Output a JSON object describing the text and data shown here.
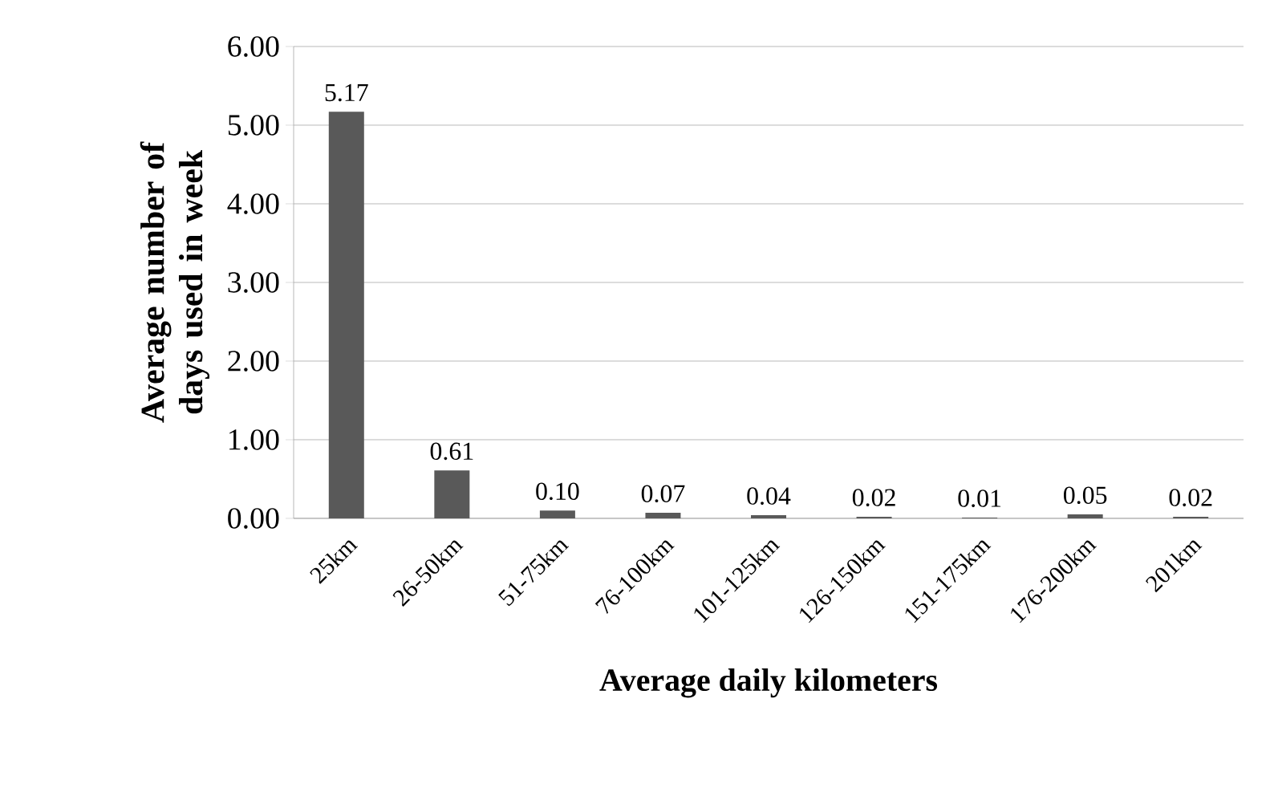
{
  "chart_data": {
    "type": "bar",
    "xlabel": "Average daily kilometers",
    "ylabel": "Average number of days used in week",
    "categories": [
      "25km",
      "26-50km",
      "51-75km",
      "76-100km",
      "101-125km",
      "126-150km",
      "151-175km",
      "176-200km",
      "201km"
    ],
    "values": [
      5.17,
      0.61,
      0.1,
      0.07,
      0.04,
      0.02,
      0.01,
      0.05,
      0.02
    ],
    "value_labels": [
      "5.17",
      "0.61",
      "0.10",
      "0.07",
      "0.04",
      "0.02",
      "0.01",
      "0.05",
      "0.02"
    ],
    "color": "#595959",
    "ylim": [
      0,
      6
    ],
    "yticks": [
      {
        "value": 0,
        "label": "0.00"
      },
      {
        "value": 1,
        "label": "1.00"
      },
      {
        "value": 2,
        "label": "2.00"
      },
      {
        "value": 3,
        "label": "3.00"
      },
      {
        "value": 4,
        "label": "4.00"
      },
      {
        "value": 5,
        "label": "5.00"
      },
      {
        "value": 6,
        "label": "6.00"
      }
    ],
    "grid": "y"
  }
}
